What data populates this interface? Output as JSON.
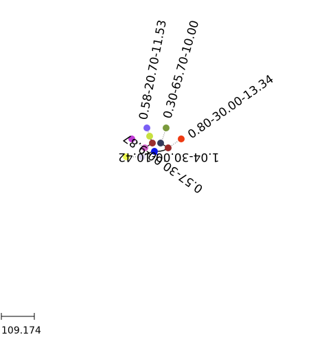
{
  "tree": {
    "leaf_labels": [
      {
        "text": "1.04-30.00-10.42",
        "color": "#eefb4e"
      },
      {
        "text": "0.57-30.00-9.87",
        "color": "#c03ad6"
      },
      {
        "text": "0.58-20.70-11.53",
        "color": "#7a5ef5"
      },
      {
        "text": "0.30-65.70-10.00",
        "color": "#7a9a3c"
      },
      {
        "text": "0.80-30.00-13.34",
        "color": "#ee3a12"
      }
    ],
    "node_colors": [
      "#ddd6f0",
      "#d060c8",
      "#c8e040",
      "#9a3030",
      "#323a5a",
      "#9a2828",
      "#0a14e8"
    ],
    "branch_color": "#000000"
  },
  "scale_bar": {
    "value": "109.174"
  }
}
